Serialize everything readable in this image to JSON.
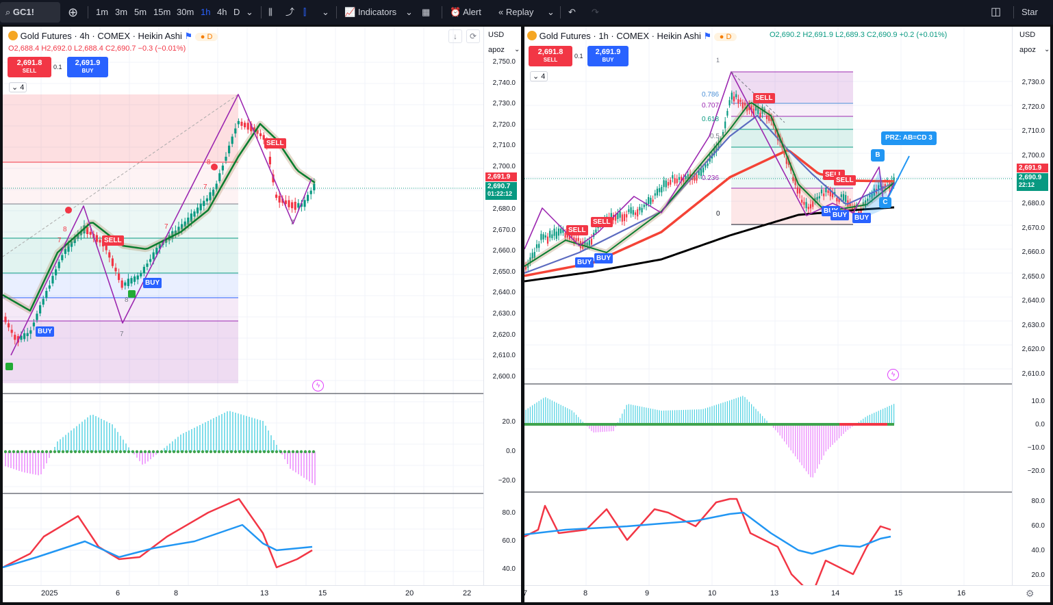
{
  "toolbar": {
    "symbol": "GC1!",
    "intervals": [
      "1m",
      "3m",
      "5m",
      "15m",
      "30m",
      "1h",
      "4h",
      "D"
    ],
    "active_interval": "1h",
    "indicators": "Indicators",
    "alert": "Alert",
    "replay": "Replay",
    "right_label": "Star"
  },
  "left": {
    "title": "Gold Futures · 4h · COMEX · Heikin Ashi",
    "badge": "D",
    "ohlc": "O2,688.4  H2,692.0  L2,688.4  C2,690.7  −0.3 (−0.01%)",
    "sell": {
      "price": "2,691.8",
      "label": "SELL"
    },
    "spread": "0.1",
    "buy": {
      "price": "2,691.9",
      "label": "BUY"
    },
    "collapse": "4",
    "currency": "USD",
    "script": "apoz",
    "yticks": [
      "2,750.0",
      "2,740.0",
      "2,730.0",
      "2,720.0",
      "2,710.0",
      "2,700.0",
      "2,680.0",
      "2,670.0",
      "2,660.0",
      "2,650.0",
      "2,640.0",
      "2,630.0",
      "2,620.0",
      "2,610.0",
      "2,600.0"
    ],
    "tag_price": "2,691.9",
    "tag_close": "2,690.7",
    "tag_timer": "01:22:12",
    "osc_ticks": [
      "20.0",
      "0.0",
      "−20.0"
    ],
    "rsi_ticks": [
      "80.0",
      "60.0",
      "40.0"
    ],
    "xticks": [
      "2025",
      "6",
      "8",
      "13",
      "15",
      "20",
      "22"
    ],
    "signals": {
      "sell1": "SELL",
      "sell2": "SELL",
      "buy1": "BUY",
      "buy2": "BUY"
    },
    "count_labels": [
      "8",
      "7",
      "7",
      "8",
      "7",
      "7",
      "8",
      "7"
    ]
  },
  "right": {
    "title": "Gold Futures · 1h · COMEX · Heikin Ashi",
    "badge": "D",
    "ohlc": "O2,690.2  H2,691.9  L2,689.3  C2,690.9  +0.2 (+0.01%)",
    "sell": {
      "price": "2,691.8",
      "label": "SELL"
    },
    "spread": "0.1",
    "buy": {
      "price": "2,691.9",
      "label": "BUY"
    },
    "collapse": "4",
    "currency": "USD",
    "script": "apoz",
    "yticks": [
      "2,730.0",
      "2,720.0",
      "2,710.0",
      "2,700.0",
      "2,680.0",
      "2,670.0",
      "2,660.0",
      "2,650.0",
      "2,640.0",
      "2,630.0",
      "2,620.0",
      "2,610.0"
    ],
    "tag_price": "2,691.9",
    "tag_close": "2,690.9",
    "tag_timer": "22:12",
    "osc_ticks": [
      "10.0",
      "0.0",
      "−10.0",
      "−20.0"
    ],
    "rsi_ticks": [
      "80.0",
      "60.0",
      "40.0",
      "20.0"
    ],
    "xticks": [
      "7",
      "8",
      "9",
      "10",
      "13",
      "14",
      "15",
      "16"
    ],
    "fib": [
      "1",
      "0.786",
      "0.707",
      "0.618",
      "0.5",
      "0.236",
      "0"
    ],
    "prz": "PRZ: AB=CD 3",
    "points": {
      "b": "B",
      "c": "C"
    },
    "signals": {
      "sell1": "SELL",
      "sell2": "SELL",
      "sell3": "SELL",
      "sell4": "SELL",
      "sell5": "SELL",
      "buy1": "BUY",
      "buy2": "BUY",
      "buy3": "BUY",
      "buy4": "BUY",
      "buy5": "BUY"
    }
  },
  "colors": {
    "bull": "#089981",
    "bear": "#f23645",
    "accent": "#2962ff",
    "pattern": "#9c27b0"
  }
}
